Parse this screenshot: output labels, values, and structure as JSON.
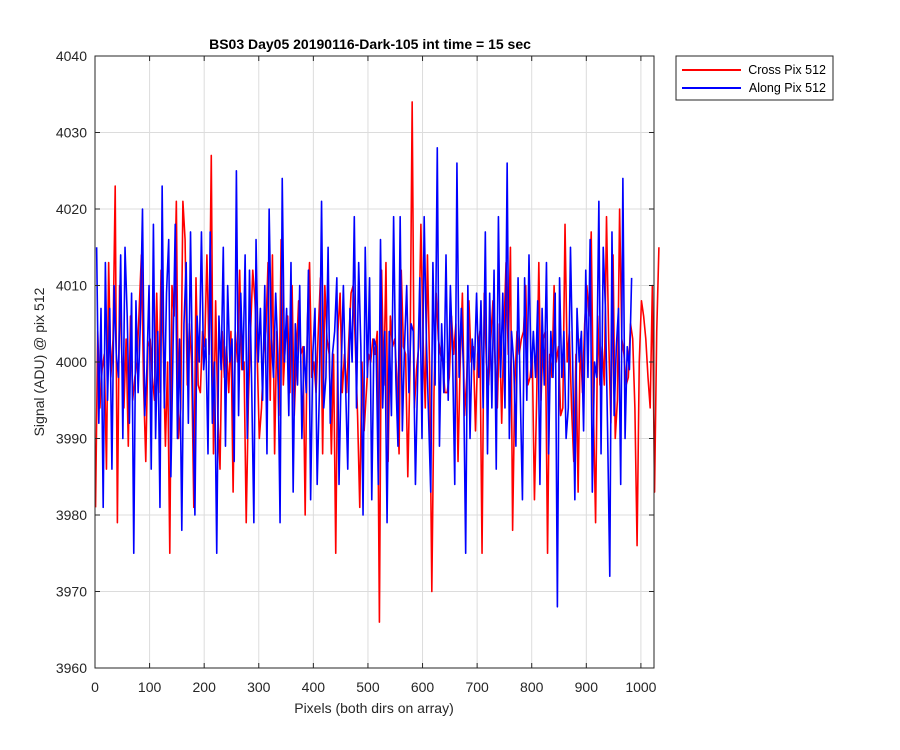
{
  "chart_data": {
    "type": "line",
    "title": "BS03 Day05 20190116-Dark-105 int time = 15 sec",
    "xlabel": "Pixels (both dirs on array)",
    "ylabel": "Signal (ADU) @ pix 512",
    "xlim": [
      0,
      1024
    ],
    "ylim": [
      3960,
      4040
    ],
    "xticks": [
      0,
      100,
      200,
      300,
      400,
      500,
      600,
      700,
      800,
      900,
      1000
    ],
    "yticks": [
      3960,
      3970,
      3980,
      3990,
      4000,
      4010,
      4020,
      4030,
      4040
    ],
    "grid": true,
    "legend_position": "outside-top-right",
    "series": [
      {
        "name": "Cross Pix 512",
        "color": "#ff0000",
        "x_start": 1,
        "x_step": 4,
        "values": [
          3981,
          4004,
          3994,
          3999,
          4001,
          3986,
          4013,
          3998,
          4003,
          4023,
          3979,
          4010,
          4001,
          3994,
          4003,
          3989,
          4006,
          3995,
          3998,
          4000,
          4007,
          4014,
          3997,
          3987,
          4002,
          4003,
          3998,
          3995,
          4009,
          3996,
          4012,
          4002,
          3989,
          4000,
          3975,
          4010,
          4006,
          4021,
          3990,
          3994,
          4021,
          4016,
          3997,
          4005,
          4000,
          3981,
          4011,
          3997,
          3996,
          4004,
          4002,
          4014,
          4001,
          4027,
          3988,
          4008,
          3993,
          3986,
          4004,
          3998,
          4002,
          3996,
          4004,
          3983,
          4004,
          4000,
          4012,
          3999,
          4000,
          3979,
          3995,
          4004,
          4012,
          4008,
          4001,
          3990,
          3994,
          4001,
          4004,
          4013,
          3995,
          4014,
          3988,
          4004,
          3993,
          4016,
          3997,
          4003,
          4006,
          3996,
          4010,
          3993,
          4001,
          4008,
          4001,
          4002,
          3980,
          4005,
          4013,
          3998,
          4000,
          3996,
          4004,
          4011,
          3988,
          4010,
          4003,
          4001,
          3988,
          4001,
          3975,
          4004,
          4009,
          3996,
          4001,
          3996,
          4003,
          4009,
          4010,
          4002,
          3993,
          3981,
          4000,
          3991,
          3996,
          4001,
          4000,
          4003,
          4001,
          4004,
          3966,
          4012,
          3997,
          4013,
          3987,
          4006,
          4002,
          4003,
          3998,
          3988,
          4012,
          4002,
          4001,
          3985,
          3999,
          4034,
          3994,
          3999,
          4002,
          4018,
          4003,
          3994,
          4014,
          3999,
          3970,
          3996,
          4009,
          4003,
          4001,
          4000,
          3996,
          3996,
          3998,
          4006,
          4001,
          4005,
          3987,
          4000,
          4009,
          3993,
          3998,
          4008,
          4000,
          4002,
          3991,
          4001,
          4004,
          3975,
          4009,
          4000,
          3997,
          4003,
          4008,
          4000,
          3994,
          4005,
          3992,
          4004,
          4013,
          4001,
          4015,
          3978,
          3997,
          4004,
          4001,
          4003,
          4004,
          4010,
          3997,
          3998,
          4001,
          3982,
          3995,
          4013,
          3995,
          4003,
          4004,
          3975,
          4001,
          3998,
          4010,
          4000,
          4002,
          3993,
          3994,
          4018,
          4000,
          4004,
          3994,
          3987,
          4001,
          3983,
          4003,
          3996,
          4005,
          4010,
          4006,
          4017,
          3994,
          3979,
          4006,
          3997,
          4002,
          3997,
          4019,
          4003,
          3992,
          4014,
          3990,
          3995,
          4020,
          4003,
          4001,
          3997,
          3998,
          4005,
          4003,
          3994,
          3976,
          4000,
          4008,
          4006,
          4003,
          3998,
          3994,
          4010,
          3983,
          4004,
          4015
        ]
      },
      {
        "name": "Along Pix 512",
        "color": "#0000ff",
        "x_start": 3,
        "x_step": 4,
        "values": [
          4015,
          3992,
          4007,
          3981,
          4013,
          3995,
          4007,
          3986,
          4010,
          4001,
          3998,
          4014,
          3990,
          4015,
          4006,
          3992,
          4009,
          3975,
          4008,
          3996,
          4005,
          4020,
          3993,
          3999,
          4010,
          3986,
          4018,
          3990,
          4004,
          3981,
          4023,
          3994,
          4009,
          4016,
          3985,
          4002,
          4018,
          3990,
          4003,
          3978,
          4005,
          4013,
          3992,
          4017,
          3996,
          3980,
          4006,
          4000,
          4017,
          3999,
          4003,
          3988,
          4017,
          3992,
          4000,
          3975,
          4006,
          3999,
          4015,
          3989,
          4010,
          4000,
          4003,
          3987,
          4025,
          3993,
          4009,
          3999,
          4014,
          3990,
          4012,
          3997,
          3979,
          4016,
          4000,
          4007,
          3995,
          4010,
          3988,
          4020,
          4003,
          3998,
          4009,
          4001,
          3979,
          4024,
          4000,
          4007,
          3993,
          4013,
          3983,
          4005,
          3997,
          4010,
          3990,
          4002,
          3996,
          4012,
          3982,
          4001,
          4007,
          3984,
          3996,
          4021,
          3994,
          3998,
          4015,
          3992,
          4001,
          4004,
          4011,
          3984,
          3999,
          4010,
          3997,
          3986,
          4007,
          4000,
          4019,
          3994,
          4013,
          4002,
          3980,
          4015,
          3998,
          4011,
          3982,
          4003,
          4002,
          3984,
          4016,
          3994,
          4004,
          3979,
          4004,
          3993,
          4019,
          3998,
          3989,
          4019,
          3991,
          4002,
          4010,
          3996,
          4005,
          4004,
          3984,
          3998,
          4011,
          3990,
          4019,
          4003,
          3993,
          3983,
          4013,
          3997,
          4028,
          3989,
          4005,
          3996,
          4014,
          3995,
          4010,
          4001,
          3984,
          4026,
          3998,
          4007,
          3999,
          3975,
          4010,
          3990,
          4003,
          3999,
          4009,
          3998,
          4008,
          3994,
          4017,
          3988,
          4009,
          3994,
          4012,
          3986,
          4019,
          3998,
          4009,
          3994,
          4026,
          3990,
          4004,
          4000,
          3989,
          4011,
          3996,
          3982,
          4011,
          3995,
          4014,
          3998,
          4004,
          3998,
          4008,
          3984,
          4007,
          3997,
          4013,
          3988,
          4004,
          3998,
          4009,
          3968,
          4011,
          3998,
          4004,
          3990,
          3994,
          4015,
          4000,
          3982,
          4007,
          4000,
          4004,
          3991,
          4012,
          3998,
          4016,
          3983,
          4000,
          3998,
          4021,
          3988,
          4015,
          4007,
          3991,
          3972,
          4017,
          3993,
          4002,
          4007,
          3984,
          4024,
          3990,
          4002,
          3999,
          4011
        ]
      }
    ]
  }
}
